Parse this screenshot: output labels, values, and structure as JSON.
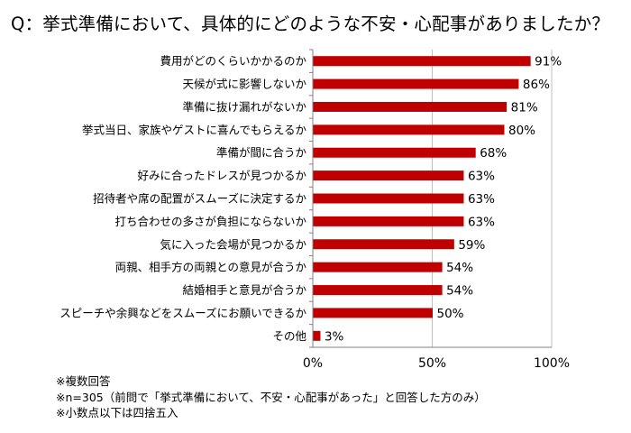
{
  "title": "Q：挙式準備において、具体的にどのような不安・心配事がありましたか？",
  "notes": [
    "※複数回答",
    "※n=305（前問で「挙式準備において、不安・心配事があった」と回答した方のみ）",
    "※小数点以下は四捨五入"
  ],
  "colors": {
    "bar": "#c00000",
    "grid": "#bfbfbf",
    "axis": "#808080"
  },
  "chart_data": {
    "type": "bar",
    "orientation": "horizontal",
    "title": "Q：挙式準備において、具体的にどのような不安・心配事がありましたか？",
    "categories": [
      "費用がどのくらいかかるのか",
      "天候が式に影響しないか",
      "準備に抜け漏れがないか",
      "挙式当日、家族やゲストに喜んでもらえるか",
      "準備が間に合うか",
      "好みに合ったドレスが見つかるか",
      "招待者や席の配置がスムーズに決定するか",
      "打ち合わせの多さが負担にならないか",
      "気に入った会場が見つかるか",
      "両親、相手方の両親との意見が合うか",
      "結婚相手と意見が合うか",
      "スピーチや余興などをスムーズにお願いできるか",
      "その他"
    ],
    "values": [
      91,
      86,
      81,
      80,
      68,
      63,
      63,
      63,
      59,
      54,
      54,
      50,
      3
    ],
    "value_labels": [
      "91%",
      "86%",
      "81%",
      "80%",
      "68%",
      "63%",
      "63%",
      "63%",
      "59%",
      "54%",
      "54%",
      "50%",
      "3%"
    ],
    "xlim": [
      0,
      100
    ],
    "xticks": [
      "0%",
      "50%",
      "100%"
    ],
    "grid": true,
    "xlabel": "",
    "ylabel": ""
  }
}
